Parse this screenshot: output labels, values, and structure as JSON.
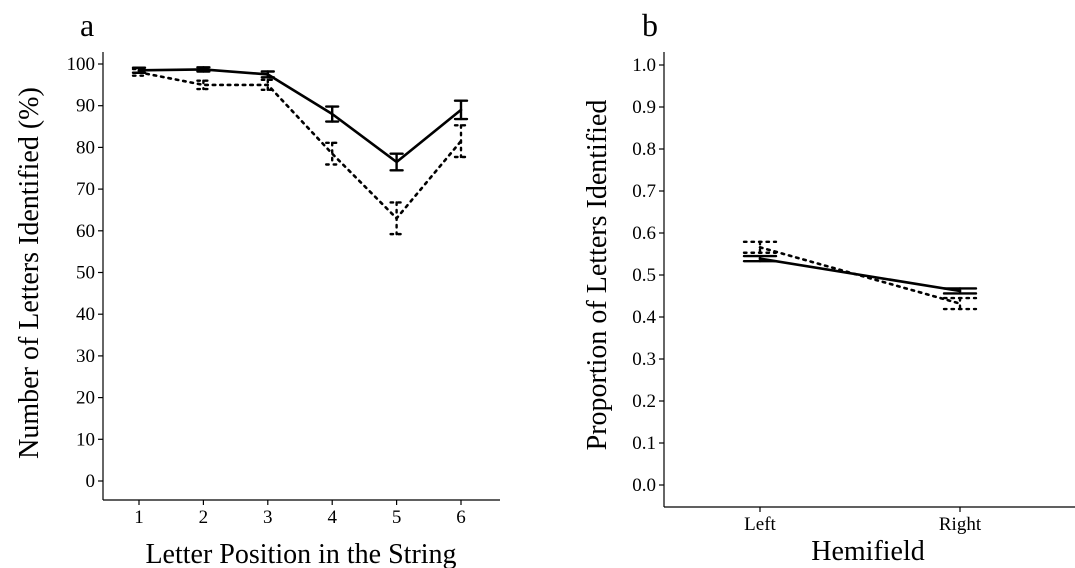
{
  "chart_data": [
    {
      "panel_label": "a",
      "type": "line",
      "xlabel": "Letter Position in the String",
      "ylabel": "Number of Letters Identified (%)",
      "x": [
        1,
        2,
        3,
        4,
        5,
        6
      ],
      "xticks": [
        "1",
        "2",
        "3",
        "4",
        "5",
        "6"
      ],
      "ylim": [
        0,
        100
      ],
      "yticks": [
        "0",
        "10",
        "20",
        "30",
        "40",
        "50",
        "60",
        "70",
        "80",
        "90",
        "100"
      ],
      "grid": false,
      "legend": "none",
      "series": [
        {
          "style": "solid",
          "values": [
            98.5,
            98.7,
            97.5,
            88.0,
            76.5,
            89.0
          ],
          "error": [
            0.6,
            0.5,
            0.7,
            1.8,
            2.0,
            2.2
          ]
        },
        {
          "style": "dotted",
          "values": [
            98.0,
            95.0,
            95.0,
            78.5,
            63.0,
            81.5
          ],
          "error": [
            0.8,
            1.0,
            1.2,
            2.6,
            3.8,
            3.8
          ]
        }
      ]
    },
    {
      "panel_label": "b",
      "type": "line",
      "xlabel": "Hemifield",
      "ylabel": "Proportion of Letters Identified",
      "categories": [
        "Left",
        "Right"
      ],
      "ylim": [
        0,
        1
      ],
      "yticks": [
        "0.0",
        "0.1",
        "0.2",
        "0.3",
        "0.4",
        "0.5",
        "0.6",
        "0.7",
        "0.8",
        "0.9",
        "1.0"
      ],
      "grid": false,
      "legend": "none",
      "series": [
        {
          "style": "solid",
          "values": [
            0.539,
            0.462
          ],
          "error": [
            0.006,
            0.006
          ]
        },
        {
          "style": "dotted",
          "values": [
            0.566,
            0.432
          ],
          "error": [
            0.013,
            0.013
          ]
        }
      ]
    }
  ]
}
